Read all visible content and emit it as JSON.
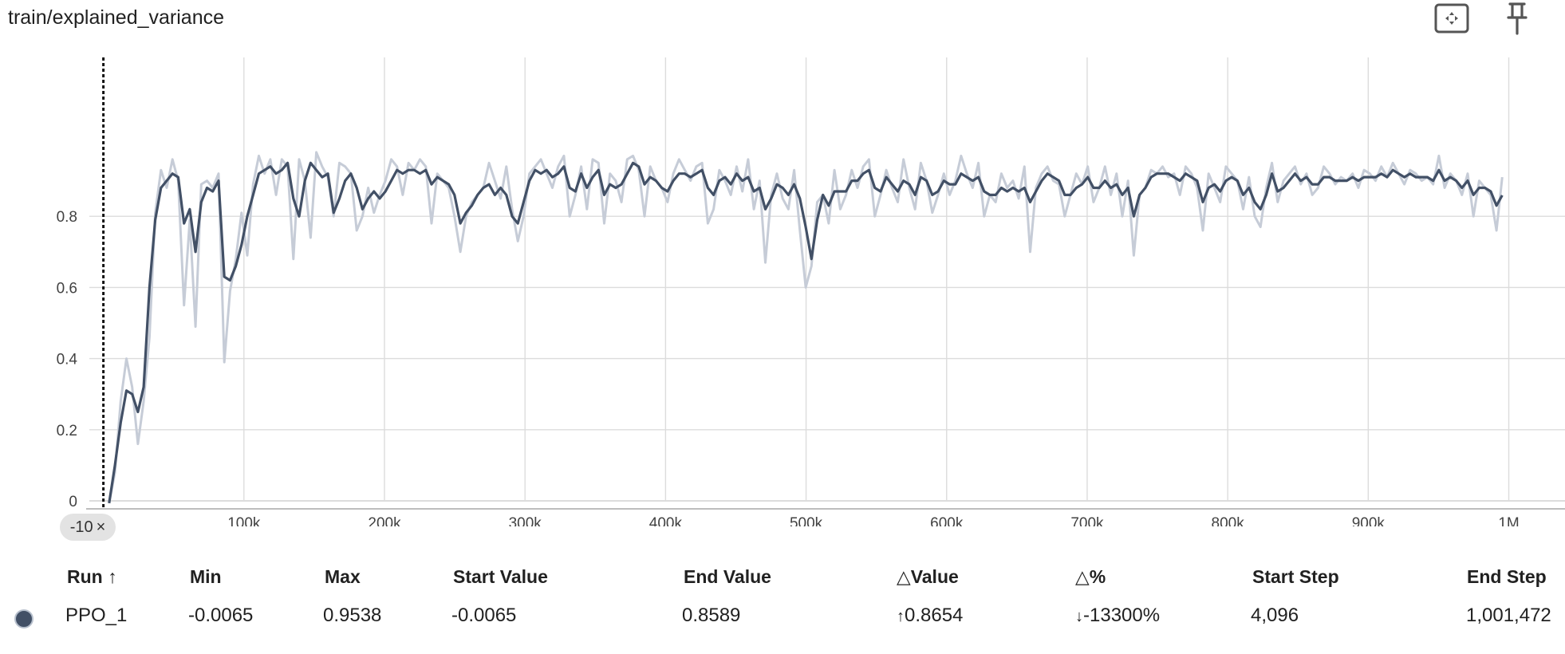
{
  "card": {
    "title": "train/explained_variance",
    "icons": [
      "fullscreen-icon",
      "pin-icon"
    ]
  },
  "x_chip": {
    "label": "-10",
    "close": "×"
  },
  "colors": {
    "smoothed_line": "#425066",
    "raw_line": "#c6ccd7",
    "grid": "#dcdcdc",
    "run_swatch": "#425066"
  },
  "chart_data": {
    "type": "line",
    "xlim": [
      -10000,
      1040000
    ],
    "ylim": [
      0,
      1
    ],
    "yticks": [
      {
        "v": 0,
        "label": "0"
      },
      {
        "v": 0.2,
        "label": "0.2"
      },
      {
        "v": 0.4,
        "label": "0.4"
      },
      {
        "v": 0.6,
        "label": "0.6"
      },
      {
        "v": 0.8,
        "label": "0.8"
      }
    ],
    "xticks": [
      {
        "v": 100000,
        "label": "100k"
      },
      {
        "v": 200000,
        "label": "200k"
      },
      {
        "v": 300000,
        "label": "300k"
      },
      {
        "v": 400000,
        "label": "400k"
      },
      {
        "v": 500000,
        "label": "500k"
      },
      {
        "v": 600000,
        "label": "600k"
      },
      {
        "v": 700000,
        "label": "700k"
      },
      {
        "v": 800000,
        "label": "800k"
      },
      {
        "v": 900000,
        "label": "900k"
      },
      {
        "v": 1000000,
        "label": "1M"
      }
    ],
    "grid": true,
    "series": [
      {
        "name": "PPO_1",
        "x": [
          4096,
          8192,
          12288,
          16384,
          20480,
          24576,
          28672,
          32768,
          36864,
          40960,
          45056,
          49152,
          53248,
          57344,
          61440,
          65536,
          69632,
          73728,
          77824,
          81920,
          86016,
          90112,
          94208,
          98304,
          102400,
          106496,
          110592,
          114688,
          118784,
          122880,
          126976,
          131072,
          135168,
          139264,
          143360,
          147456,
          151552,
          155648,
          159744,
          163840,
          167936,
          172032,
          176128,
          180224,
          184320,
          188416,
          192512,
          196608,
          200704,
          204800,
          208896,
          212992,
          217088,
          221184,
          225280,
          229376,
          233472,
          237568,
          241664,
          245760,
          249856,
          253952,
          258048,
          262144,
          266240,
          270336,
          274432,
          278528,
          282624,
          286720,
          290816,
          294912,
          299008,
          303104,
          307200,
          311296,
          315392,
          319488,
          323584,
          327680,
          331776,
          335872,
          339968,
          344064,
          348160,
          352256,
          356352,
          360448,
          364544,
          368640,
          372736,
          376832,
          380928,
          385024,
          389120,
          393216,
          397312,
          401408,
          405504,
          409600,
          413696,
          417792,
          421888,
          425984,
          430080,
          434176,
          438272,
          442368,
          446464,
          450560,
          454656,
          458752,
          462848,
          466944,
          471040,
          475136,
          479232,
          483328,
          487424,
          491520,
          495616,
          499712,
          503808,
          507904,
          512000,
          516096,
          520192,
          524288,
          528384,
          532480,
          536576,
          540672,
          544768,
          548864,
          552960,
          557056,
          561152,
          565248,
          569344,
          573440,
          577536,
          581632,
          585728,
          589824,
          593920,
          598016,
          602112,
          606208,
          610304,
          614400,
          618496,
          622592,
          626688,
          630784,
          634880,
          638976,
          643072,
          647168,
          651264,
          655360,
          659456,
          663552,
          667648,
          671744,
          675840,
          679936,
          684032,
          688128,
          692224,
          696320,
          700416,
          704512,
          708608,
          712704,
          716800,
          720896,
          724992,
          729088,
          733184,
          737280,
          741376,
          745472,
          749568,
          753664,
          757760,
          761856,
          765952,
          770048,
          774144,
          778240,
          782336,
          786432,
          790528,
          794624,
          798720,
          802816,
          806912,
          811008,
          815104,
          819200,
          823296,
          827392,
          831488,
          835584,
          839680,
          843776,
          847872,
          851968,
          856064,
          860160,
          864256,
          868352,
          872448,
          876544,
          880640,
          884736,
          888832,
          892928,
          897024,
          901120,
          905216,
          909312,
          913408,
          917504,
          921600,
          925696,
          929792,
          933888,
          937984,
          942080,
          946176,
          950272,
          954368,
          958464,
          962560,
          966656,
          970752,
          974848,
          978944,
          983040,
          987136,
          991232,
          995328,
          999424,
          1001472
        ],
        "raw": [
          -0.0065,
          0.08,
          0.28,
          0.4,
          0.32,
          0.16,
          0.28,
          0.46,
          0.81,
          0.93,
          0.88,
          0.96,
          0.9,
          0.55,
          0.79,
          0.49,
          0.89,
          0.9,
          0.88,
          0.92,
          0.39,
          0.59,
          0.68,
          0.81,
          0.69,
          0.89,
          0.97,
          0.92,
          0.96,
          0.86,
          0.96,
          0.94,
          0.68,
          0.96,
          0.9,
          0.74,
          0.98,
          0.94,
          0.91,
          0.8,
          0.95,
          0.94,
          0.92,
          0.76,
          0.8,
          0.88,
          0.81,
          0.86,
          0.9,
          0.96,
          0.94,
          0.86,
          0.95,
          0.93,
          0.96,
          0.94,
          0.78,
          0.92,
          0.9,
          0.88,
          0.8,
          0.7,
          0.8,
          0.84,
          0.86,
          0.88,
          0.95,
          0.9,
          0.85,
          0.94,
          0.82,
          0.73,
          0.8,
          0.92,
          0.94,
          0.96,
          0.92,
          0.88,
          0.94,
          0.97,
          0.8,
          0.86,
          0.94,
          0.82,
          0.96,
          0.95,
          0.78,
          0.92,
          0.9,
          0.84,
          0.96,
          0.97,
          0.93,
          0.8,
          0.94,
          0.9,
          0.88,
          0.84,
          0.92,
          0.96,
          0.93,
          0.9,
          0.94,
          0.95,
          0.78,
          0.82,
          0.93,
          0.9,
          0.86,
          0.94,
          0.87,
          0.96,
          0.82,
          0.9,
          0.67,
          0.86,
          0.92,
          0.85,
          0.82,
          0.93,
          0.76,
          0.6,
          0.66,
          0.84,
          0.86,
          0.78,
          0.93,
          0.82,
          0.86,
          0.93,
          0.88,
          0.94,
          0.96,
          0.8,
          0.86,
          0.93,
          0.88,
          0.84,
          0.96,
          0.88,
          0.82,
          0.95,
          0.9,
          0.81,
          0.86,
          0.92,
          0.86,
          0.9,
          0.97,
          0.92,
          0.88,
          0.95,
          0.8,
          0.86,
          0.84,
          0.92,
          0.88,
          0.9,
          0.85,
          0.94,
          0.7,
          0.88,
          0.92,
          0.94,
          0.9,
          0.89,
          0.8,
          0.86,
          0.92,
          0.89,
          0.94,
          0.84,
          0.88,
          0.94,
          0.86,
          0.92,
          0.8,
          0.9,
          0.69,
          0.86,
          0.88,
          0.93,
          0.92,
          0.94,
          0.91,
          0.92,
          0.86,
          0.94,
          0.92,
          0.88,
          0.76,
          0.92,
          0.88,
          0.84,
          0.94,
          0.92,
          0.9,
          0.82,
          0.91,
          0.8,
          0.77,
          0.88,
          0.95,
          0.84,
          0.9,
          0.92,
          0.94,
          0.89,
          0.92,
          0.86,
          0.88,
          0.94,
          0.92,
          0.89,
          0.91,
          0.9,
          0.92,
          0.88,
          0.93,
          0.92,
          0.9,
          0.94,
          0.91,
          0.95,
          0.92,
          0.89,
          0.93,
          0.92,
          0.9,
          0.91,
          0.89,
          0.97,
          0.88,
          0.92,
          0.9,
          0.86,
          0.92,
          0.8,
          0.9,
          0.88,
          0.86,
          0.76,
          0.91
        ],
        "smoothed": [
          -0.0065,
          0.1,
          0.22,
          0.31,
          0.3,
          0.25,
          0.32,
          0.6,
          0.79,
          0.88,
          0.9,
          0.92,
          0.91,
          0.78,
          0.82,
          0.7,
          0.84,
          0.88,
          0.87,
          0.9,
          0.63,
          0.62,
          0.66,
          0.72,
          0.8,
          0.86,
          0.92,
          0.93,
          0.94,
          0.92,
          0.93,
          0.95,
          0.85,
          0.8,
          0.9,
          0.95,
          0.93,
          0.91,
          0.92,
          0.81,
          0.85,
          0.9,
          0.92,
          0.88,
          0.82,
          0.85,
          0.87,
          0.85,
          0.87,
          0.9,
          0.93,
          0.92,
          0.93,
          0.93,
          0.92,
          0.93,
          0.89,
          0.91,
          0.9,
          0.89,
          0.86,
          0.78,
          0.81,
          0.83,
          0.86,
          0.88,
          0.89,
          0.86,
          0.88,
          0.86,
          0.8,
          0.78,
          0.84,
          0.9,
          0.93,
          0.92,
          0.93,
          0.91,
          0.92,
          0.94,
          0.88,
          0.87,
          0.92,
          0.88,
          0.91,
          0.93,
          0.86,
          0.89,
          0.88,
          0.89,
          0.92,
          0.95,
          0.94,
          0.89,
          0.91,
          0.9,
          0.88,
          0.87,
          0.9,
          0.92,
          0.92,
          0.91,
          0.92,
          0.93,
          0.88,
          0.86,
          0.9,
          0.91,
          0.89,
          0.92,
          0.9,
          0.91,
          0.87,
          0.88,
          0.82,
          0.85,
          0.89,
          0.88,
          0.86,
          0.89,
          0.85,
          0.77,
          0.68,
          0.79,
          0.86,
          0.83,
          0.87,
          0.87,
          0.87,
          0.9,
          0.9,
          0.92,
          0.93,
          0.88,
          0.87,
          0.91,
          0.89,
          0.87,
          0.9,
          0.89,
          0.86,
          0.91,
          0.9,
          0.86,
          0.87,
          0.9,
          0.89,
          0.89,
          0.92,
          0.91,
          0.9,
          0.91,
          0.87,
          0.86,
          0.86,
          0.88,
          0.87,
          0.88,
          0.87,
          0.88,
          0.84,
          0.87,
          0.9,
          0.92,
          0.91,
          0.9,
          0.86,
          0.86,
          0.88,
          0.89,
          0.91,
          0.88,
          0.88,
          0.9,
          0.88,
          0.89,
          0.86,
          0.88,
          0.8,
          0.86,
          0.88,
          0.91,
          0.92,
          0.92,
          0.92,
          0.91,
          0.9,
          0.92,
          0.91,
          0.9,
          0.84,
          0.88,
          0.89,
          0.87,
          0.9,
          0.91,
          0.9,
          0.86,
          0.88,
          0.84,
          0.82,
          0.86,
          0.92,
          0.87,
          0.88,
          0.9,
          0.92,
          0.9,
          0.91,
          0.89,
          0.89,
          0.91,
          0.91,
          0.9,
          0.9,
          0.9,
          0.91,
          0.9,
          0.91,
          0.91,
          0.91,
          0.92,
          0.91,
          0.93,
          0.92,
          0.91,
          0.92,
          0.91,
          0.91,
          0.91,
          0.9,
          0.93,
          0.9,
          0.91,
          0.9,
          0.88,
          0.9,
          0.86,
          0.88,
          0.88,
          0.87,
          0.83,
          0.8589
        ]
      }
    ]
  },
  "table": {
    "headers": {
      "run": "Run ↑",
      "min": "Min",
      "max": "Max",
      "start_value": "Start Value",
      "end_value": "End Value",
      "delta_value": "△Value",
      "delta_pct": "△%",
      "start_step": "Start Step",
      "end_step": "End Step"
    },
    "rows": [
      {
        "run": "PPO_1",
        "min": "-0.0065",
        "max": "0.9538",
        "start_value": "-0.0065",
        "end_value": "0.8589",
        "delta_value_arrow": "↑",
        "delta_value": "0.8654",
        "delta_pct_arrow": "↓",
        "delta_pct": "-13300%",
        "start_step": "4,096",
        "end_step": "1,001,472"
      }
    ]
  }
}
